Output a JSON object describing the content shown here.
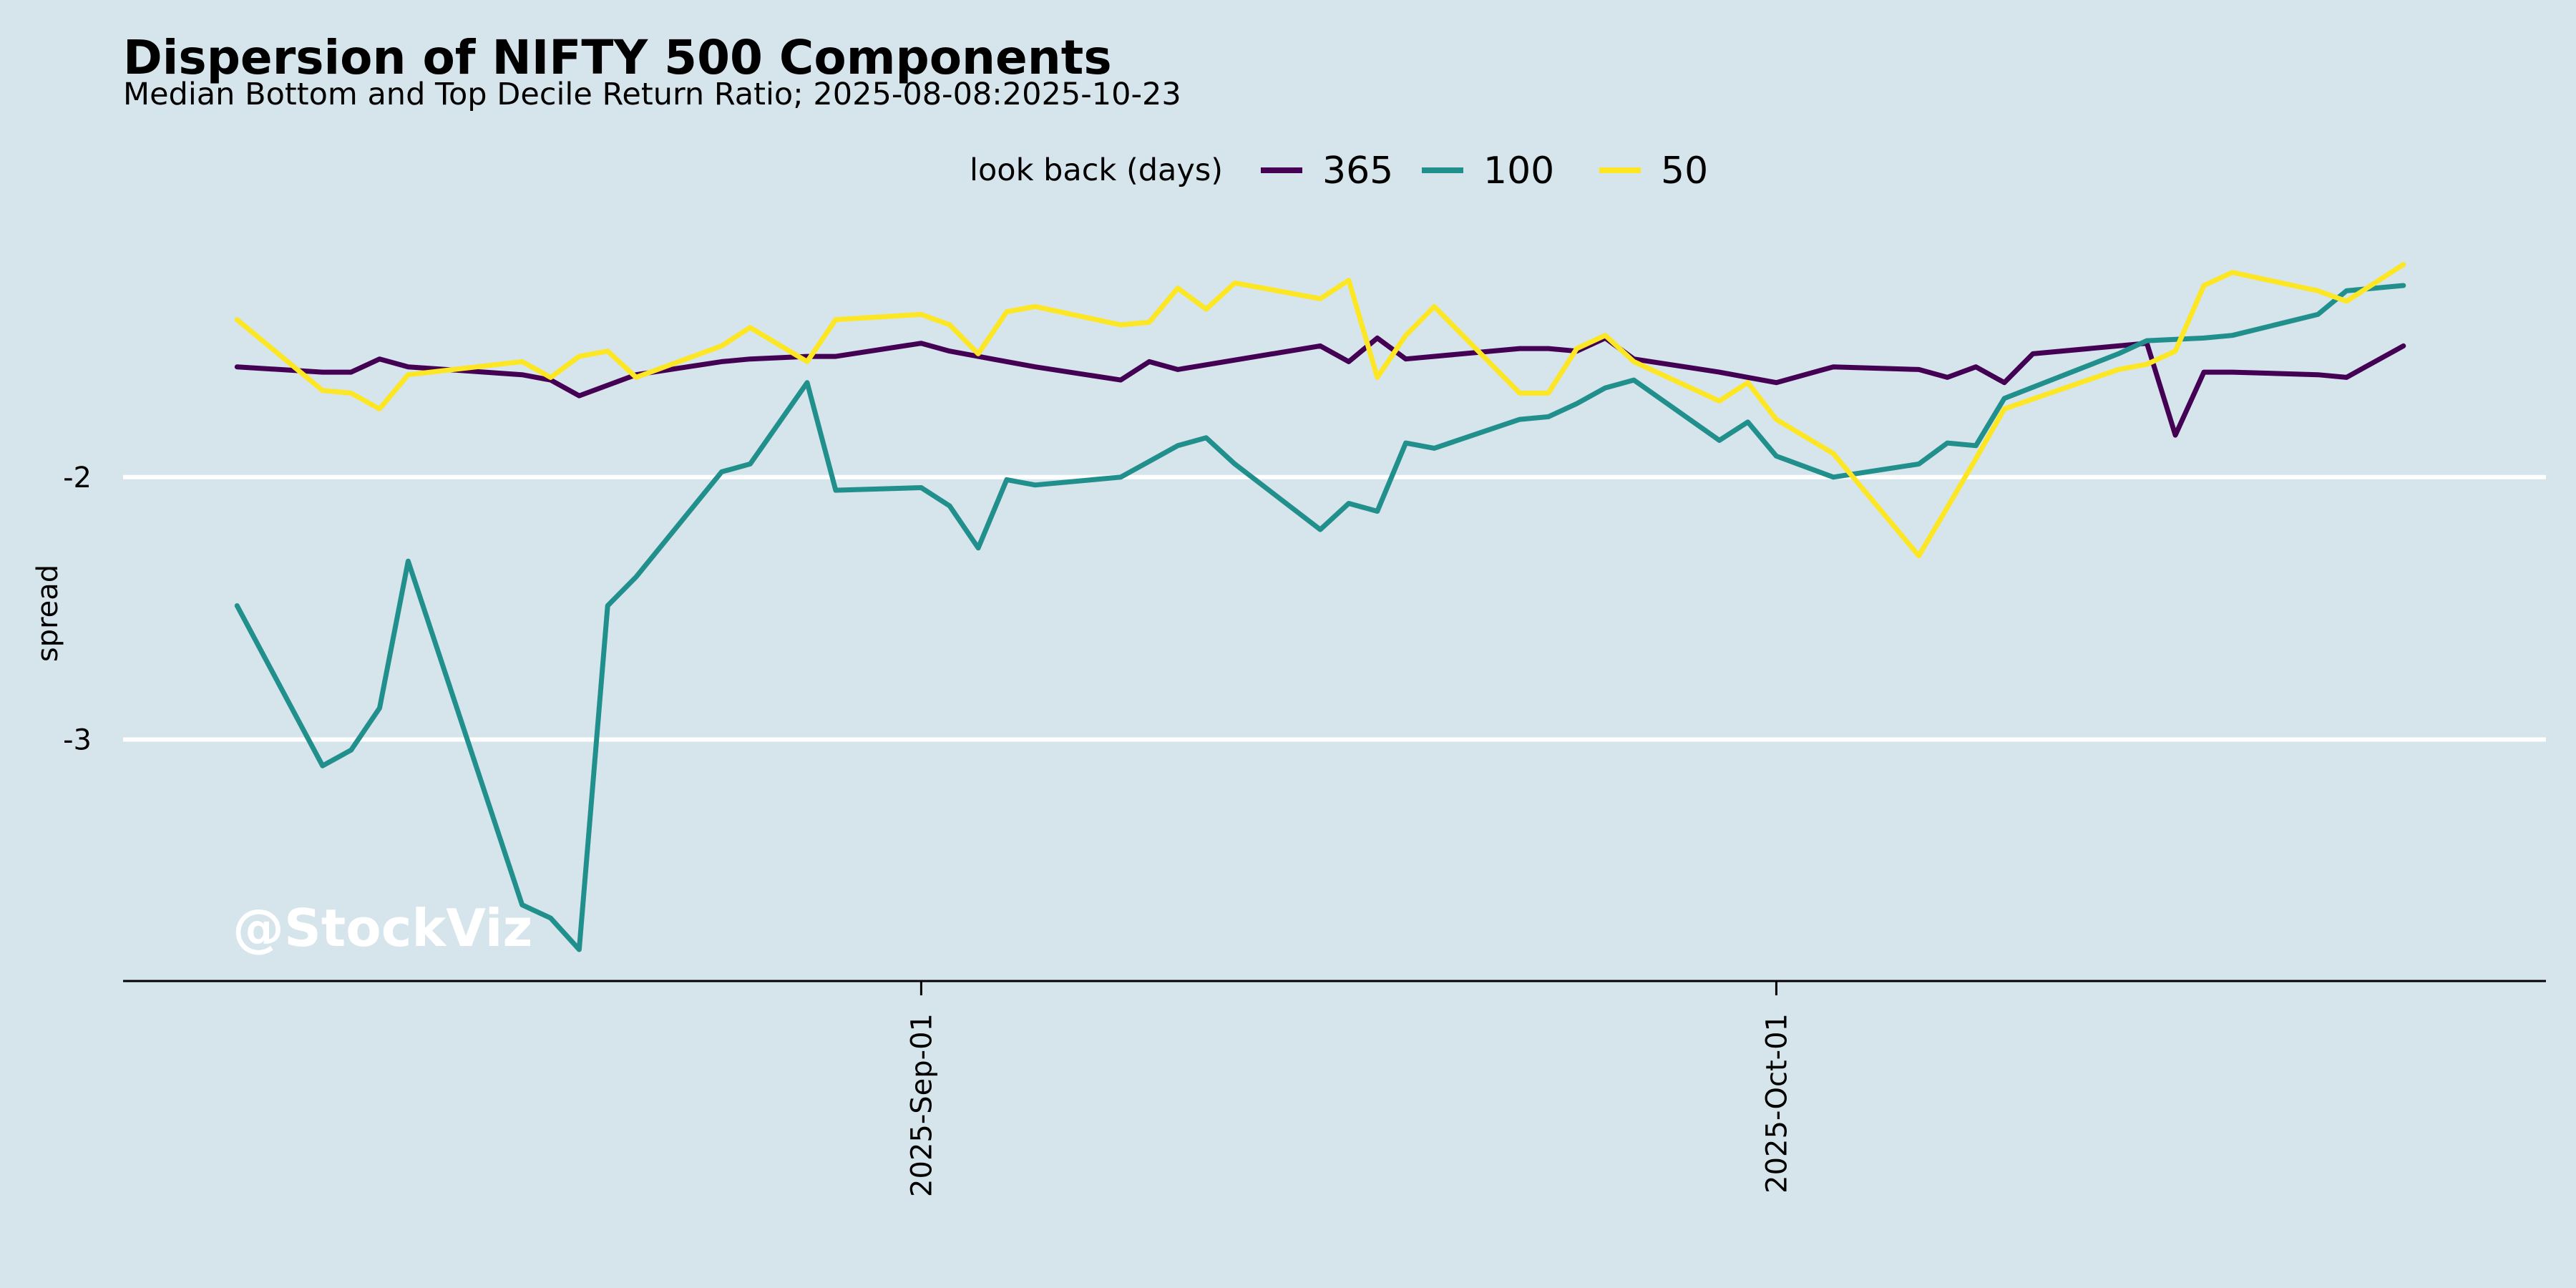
{
  "chart_data": {
    "type": "line",
    "title": "Dispersion of NIFTY 500 Components",
    "subtitle": "Median Bottom and Top Decile Return Ratio; 2025-08-08:2025-10-23",
    "xlabel": "",
    "ylabel": "spread",
    "x_tick_labels": [
      "2025-Sep-01",
      "2025-Oct-01"
    ],
    "x_ticks": [
      "2025-09-01",
      "2025-10-01"
    ],
    "xlim": [
      "2025-08-04",
      "2025-10-28"
    ],
    "y_ticks": [
      -3,
      -2
    ],
    "y_tick_labels": [
      "-3",
      "-2"
    ],
    "ylim": [
      -3.92,
      -1.0
    ],
    "grid": "horizontal",
    "legend": {
      "title": "look back (days)",
      "position": "top-center"
    },
    "watermark": "@StockViz",
    "series": [
      {
        "name": "365",
        "color": "#440154",
        "points": [
          [
            "2025-08-08",
            -1.58
          ],
          [
            "2025-08-11",
            -1.6
          ],
          [
            "2025-08-12",
            -1.6
          ],
          [
            "2025-08-13",
            -1.55
          ],
          [
            "2025-08-14",
            -1.58
          ],
          [
            "2025-08-18",
            -1.61
          ],
          [
            "2025-08-19",
            -1.63
          ],
          [
            "2025-08-20",
            -1.69
          ],
          [
            "2025-08-21",
            -1.65
          ],
          [
            "2025-08-22",
            -1.61
          ],
          [
            "2025-08-25",
            -1.56
          ],
          [
            "2025-08-26",
            -1.55
          ],
          [
            "2025-08-28",
            -1.54
          ],
          [
            "2025-08-29",
            -1.54
          ],
          [
            "2025-09-01",
            -1.49
          ],
          [
            "2025-09-02",
            -1.52
          ],
          [
            "2025-09-04",
            -1.56
          ],
          [
            "2025-09-05",
            -1.58
          ],
          [
            "2025-09-08",
            -1.63
          ],
          [
            "2025-09-09",
            -1.56
          ],
          [
            "2025-09-10",
            -1.59
          ],
          [
            "2025-09-15",
            -1.5
          ],
          [
            "2025-09-16",
            -1.56
          ],
          [
            "2025-09-17",
            -1.47
          ],
          [
            "2025-09-18",
            -1.55
          ],
          [
            "2025-09-22",
            -1.51
          ],
          [
            "2025-09-23",
            -1.51
          ],
          [
            "2025-09-24",
            -1.52
          ],
          [
            "2025-09-25",
            -1.47
          ],
          [
            "2025-09-26",
            -1.55
          ],
          [
            "2025-09-29",
            -1.6
          ],
          [
            "2025-09-30",
            -1.62
          ],
          [
            "2025-10-01",
            -1.64
          ],
          [
            "2025-10-03",
            -1.58
          ],
          [
            "2025-10-06",
            -1.59
          ],
          [
            "2025-10-07",
            -1.62
          ],
          [
            "2025-10-08",
            -1.58
          ],
          [
            "2025-10-09",
            -1.64
          ],
          [
            "2025-10-10",
            -1.53
          ],
          [
            "2025-10-13",
            -1.5
          ],
          [
            "2025-10-14",
            -1.49
          ],
          [
            "2025-10-15",
            -1.84
          ],
          [
            "2025-10-16",
            -1.6
          ],
          [
            "2025-10-17",
            -1.6
          ],
          [
            "2025-10-20",
            -1.61
          ],
          [
            "2025-10-21",
            -1.62
          ],
          [
            "2025-10-22",
            -1.56
          ],
          [
            "2025-10-23",
            -1.5
          ]
        ]
      },
      {
        "name": "100",
        "color": "#21908c",
        "points": [
          [
            "2025-08-08",
            -2.49
          ],
          [
            "2025-08-11",
            -3.1
          ],
          [
            "2025-08-12",
            -3.04
          ],
          [
            "2025-08-13",
            -2.88
          ],
          [
            "2025-08-14",
            -2.32
          ],
          [
            "2025-08-18",
            -3.63
          ],
          [
            "2025-08-19",
            -3.68
          ],
          [
            "2025-08-20",
            -3.8
          ],
          [
            "2025-08-21",
            -2.49
          ],
          [
            "2025-08-22",
            -2.38
          ],
          [
            "2025-08-25",
            -1.98
          ],
          [
            "2025-08-26",
            -1.95
          ],
          [
            "2025-08-28",
            -1.64
          ],
          [
            "2025-08-29",
            -2.05
          ],
          [
            "2025-09-01",
            -2.04
          ],
          [
            "2025-09-02",
            -2.11
          ],
          [
            "2025-09-03",
            -2.27
          ],
          [
            "2025-09-04",
            -2.01
          ],
          [
            "2025-09-05",
            -2.03
          ],
          [
            "2025-09-08",
            -2.0
          ],
          [
            "2025-09-09",
            -1.94
          ],
          [
            "2025-09-10",
            -1.88
          ],
          [
            "2025-09-11",
            -1.85
          ],
          [
            "2025-09-12",
            -1.95
          ],
          [
            "2025-09-15",
            -2.2
          ],
          [
            "2025-09-16",
            -2.1
          ],
          [
            "2025-09-17",
            -2.13
          ],
          [
            "2025-09-18",
            -1.87
          ],
          [
            "2025-09-19",
            -1.89
          ],
          [
            "2025-09-22",
            -1.78
          ],
          [
            "2025-09-23",
            -1.77
          ],
          [
            "2025-09-24",
            -1.72
          ],
          [
            "2025-09-25",
            -1.66
          ],
          [
            "2025-09-26",
            -1.63
          ],
          [
            "2025-09-29",
            -1.86
          ],
          [
            "2025-09-30",
            -1.79
          ],
          [
            "2025-10-01",
            -1.92
          ],
          [
            "2025-10-03",
            -2.0
          ],
          [
            "2025-10-06",
            -1.95
          ],
          [
            "2025-10-07",
            -1.87
          ],
          [
            "2025-10-08",
            -1.88
          ],
          [
            "2025-10-09",
            -1.7
          ],
          [
            "2025-10-13",
            -1.53
          ],
          [
            "2025-10-14",
            -1.48
          ],
          [
            "2025-10-16",
            -1.47
          ],
          [
            "2025-10-17",
            -1.46
          ],
          [
            "2025-10-20",
            -1.38
          ],
          [
            "2025-10-21",
            -1.29
          ],
          [
            "2025-10-23",
            -1.27
          ]
        ]
      },
      {
        "name": "50",
        "color": "#fde725",
        "points": [
          [
            "2025-08-08",
            -1.4
          ],
          [
            "2025-08-11",
            -1.67
          ],
          [
            "2025-08-12",
            -1.68
          ],
          [
            "2025-08-13",
            -1.74
          ],
          [
            "2025-08-14",
            -1.61
          ],
          [
            "2025-08-18",
            -1.56
          ],
          [
            "2025-08-19",
            -1.62
          ],
          [
            "2025-08-20",
            -1.54
          ],
          [
            "2025-08-21",
            -1.52
          ],
          [
            "2025-08-22",
            -1.62
          ],
          [
            "2025-08-25",
            -1.5
          ],
          [
            "2025-08-26",
            -1.43
          ],
          [
            "2025-08-28",
            -1.56
          ],
          [
            "2025-08-29",
            -1.4
          ],
          [
            "2025-09-01",
            -1.38
          ],
          [
            "2025-09-02",
            -1.42
          ],
          [
            "2025-09-03",
            -1.53
          ],
          [
            "2025-09-04",
            -1.37
          ],
          [
            "2025-09-05",
            -1.35
          ],
          [
            "2025-09-08",
            -1.42
          ],
          [
            "2025-09-09",
            -1.41
          ],
          [
            "2025-09-10",
            -1.28
          ],
          [
            "2025-09-11",
            -1.36
          ],
          [
            "2025-09-12",
            -1.26
          ],
          [
            "2025-09-15",
            -1.32
          ],
          [
            "2025-09-16",
            -1.25
          ],
          [
            "2025-09-17",
            -1.62
          ],
          [
            "2025-09-18",
            -1.46
          ],
          [
            "2025-09-19",
            -1.35
          ],
          [
            "2025-09-22",
            -1.68
          ],
          [
            "2025-09-23",
            -1.68
          ],
          [
            "2025-09-24",
            -1.51
          ],
          [
            "2025-09-25",
            -1.46
          ],
          [
            "2025-09-26",
            -1.56
          ],
          [
            "2025-09-29",
            -1.71
          ],
          [
            "2025-09-30",
            -1.64
          ],
          [
            "2025-10-01",
            -1.78
          ],
          [
            "2025-10-03",
            -1.91
          ],
          [
            "2025-10-06",
            -2.3
          ],
          [
            "2025-10-08",
            -1.93
          ],
          [
            "2025-10-09",
            -1.74
          ],
          [
            "2025-10-13",
            -1.59
          ],
          [
            "2025-10-14",
            -1.57
          ],
          [
            "2025-10-15",
            -1.52
          ],
          [
            "2025-10-16",
            -1.27
          ],
          [
            "2025-10-17",
            -1.22
          ],
          [
            "2025-10-20",
            -1.29
          ],
          [
            "2025-10-21",
            -1.33
          ],
          [
            "2025-10-23",
            -1.19
          ]
        ]
      }
    ]
  }
}
